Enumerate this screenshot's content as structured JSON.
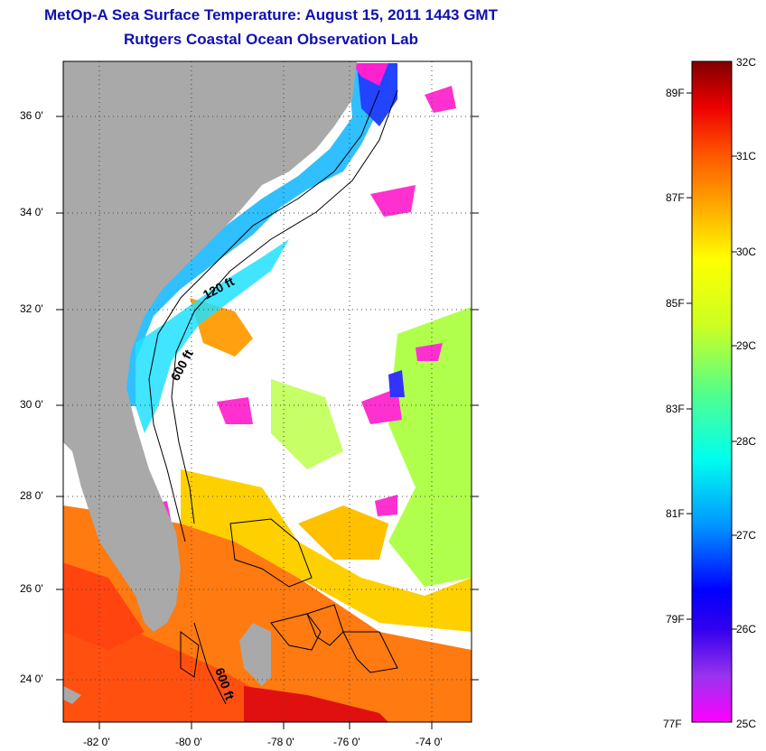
{
  "title": {
    "line1": "MetOp-A Sea Surface Temperature:  August 15, 2011 1443 GMT",
    "line2": "Rutgers Coastal Ocean Observation Lab"
  },
  "map": {
    "lat_ticks": [
      "36 0'",
      "34 0'",
      "32 0'",
      "30 0'",
      "28 0'",
      "26 0'",
      "24 0'"
    ],
    "lon_ticks": [
      "-82 0'",
      "-80 0'",
      "-78 0'",
      "-76 0'",
      "-74 0'"
    ],
    "contour_labels": [
      "120 ft",
      "600 ft",
      "600 ft"
    ],
    "colors": {
      "land": "#a9a9a9",
      "frame": "#000000",
      "title": "#1010b0"
    }
  },
  "colorbar": {
    "celsius_labels": [
      "32C",
      "31C",
      "30C",
      "29C",
      "28C",
      "27C",
      "26C",
      "25C"
    ],
    "fahrenheit_labels": [
      "89F",
      "87F",
      "85F",
      "83F",
      "81F",
      "79F",
      "77F"
    ]
  }
}
